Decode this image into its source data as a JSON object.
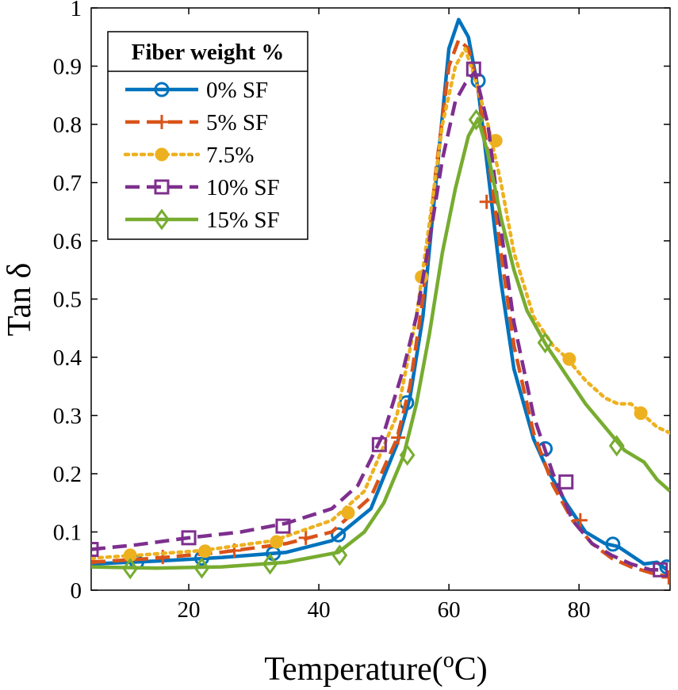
{
  "chart_data": {
    "type": "line",
    "title": "",
    "xlabel": "Temperature(",
    "xlabel_sup": "o",
    "xlabel_end": "C)",
    "ylabel": "Tan δ",
    "xlim": [
      5,
      94
    ],
    "ylim": [
      0,
      1
    ],
    "xticks": [
      20,
      40,
      60,
      80
    ],
    "yticks": [
      0,
      0.1,
      0.2,
      0.3,
      0.4,
      0.5,
      0.6,
      0.7,
      0.8,
      0.9,
      1
    ],
    "legend": {
      "title": "Fiber weight %",
      "location": "top-left"
    },
    "series": [
      {
        "name": "0% SF",
        "color": "#0072BD",
        "style": "solid",
        "marker": "circle",
        "x": [
          5,
          15,
          25,
          35,
          42,
          48,
          52,
          54,
          56,
          58,
          60,
          61.5,
          63,
          64.5,
          66,
          68,
          70,
          73,
          75,
          78,
          81,
          84,
          86,
          88,
          90,
          92,
          93.5
        ],
        "y": [
          0.045,
          0.05,
          0.056,
          0.065,
          0.085,
          0.14,
          0.25,
          0.33,
          0.47,
          0.7,
          0.93,
          0.98,
          0.95,
          0.86,
          0.72,
          0.53,
          0.38,
          0.26,
          0.21,
          0.15,
          0.1,
          0.08,
          0.075,
          0.06,
          0.045,
          0.048,
          0.035
        ],
        "marker_x": [
          12,
          22,
          33,
          43,
          53.5,
          64.5,
          74.8,
          85.2,
          93.5
        ],
        "marker_y": [
          0.048,
          0.055,
          0.063,
          0.095,
          0.322,
          0.875,
          0.243,
          0.079,
          0.04
        ]
      },
      {
        "name": "5% SF",
        "color": "#D95319",
        "style": "dashed",
        "marker": "plus",
        "x": [
          5,
          15,
          25,
          35,
          42,
          48,
          52,
          54,
          56,
          58,
          60,
          61.5,
          63,
          64.5,
          66,
          68,
          70,
          73,
          76,
          79,
          82,
          85,
          88,
          91,
          94
        ],
        "y": [
          0.048,
          0.055,
          0.065,
          0.08,
          0.1,
          0.16,
          0.26,
          0.35,
          0.5,
          0.72,
          0.9,
          0.945,
          0.93,
          0.86,
          0.75,
          0.58,
          0.42,
          0.27,
          0.18,
          0.12,
          0.08,
          0.055,
          0.04,
          0.03,
          0.022
        ],
        "marker_x": [
          5,
          16,
          27,
          38,
          52.2,
          65.8,
          80.2,
          93.8
        ],
        "marker_y": [
          0.05,
          0.057,
          0.068,
          0.09,
          0.262,
          0.667,
          0.12,
          0.022
        ]
      },
      {
        "name": "7.5%",
        "color": "#EDB120",
        "style": "dotted",
        "marker": "dot",
        "x": [
          5,
          12,
          22,
          33,
          42,
          47,
          52,
          55,
          57,
          59,
          61,
          62.5,
          64,
          66,
          68,
          70,
          73,
          76,
          78,
          81,
          84,
          86,
          88,
          90,
          92,
          94
        ],
        "y": [
          0.055,
          0.06,
          0.068,
          0.085,
          0.12,
          0.17,
          0.3,
          0.47,
          0.63,
          0.8,
          0.9,
          0.93,
          0.88,
          0.8,
          0.7,
          0.58,
          0.47,
          0.42,
          0.4,
          0.36,
          0.33,
          0.32,
          0.32,
          0.3,
          0.28,
          0.27
        ],
        "marker_x": [
          11,
          22.5,
          33.5,
          44.5,
          55.8,
          67.2,
          78.5,
          89.5
        ],
        "marker_y": [
          0.06,
          0.067,
          0.083,
          0.133,
          0.538,
          0.772,
          0.397,
          0.304
        ]
      },
      {
        "name": "10% SF",
        "color": "#7E2F8E",
        "style": "dashed",
        "marker": "square",
        "x": [
          5,
          12,
          20,
          28,
          35,
          42,
          46,
          50,
          53,
          55,
          57,
          59,
          61,
          62.5,
          64,
          66,
          68,
          70,
          73,
          76,
          79,
          82,
          85,
          88,
          91,
          93
        ],
        "y": [
          0.07,
          0.078,
          0.09,
          0.1,
          0.115,
          0.14,
          0.18,
          0.27,
          0.38,
          0.47,
          0.6,
          0.74,
          0.84,
          0.87,
          0.89,
          0.8,
          0.62,
          0.46,
          0.3,
          0.2,
          0.12,
          0.08,
          0.06,
          0.045,
          0.035,
          0.035
        ],
        "marker_x": [
          5,
          20,
          34.5,
          49.3,
          63.8,
          78,
          92.5
        ],
        "marker_y": [
          0.07,
          0.09,
          0.11,
          0.25,
          0.895,
          0.186,
          0.035
        ]
      },
      {
        "name": "15% SF",
        "color": "#77AC30",
        "style": "solid",
        "marker": "diamond",
        "x": [
          5,
          15,
          25,
          35,
          43,
          47,
          50,
          53,
          55,
          57,
          59,
          61,
          63,
          64.5,
          66,
          68,
          70,
          72,
          75,
          78,
          81,
          84,
          87,
          90,
          92,
          94
        ],
        "y": [
          0.04,
          0.038,
          0.04,
          0.048,
          0.065,
          0.1,
          0.15,
          0.23,
          0.32,
          0.44,
          0.58,
          0.69,
          0.78,
          0.81,
          0.75,
          0.64,
          0.55,
          0.48,
          0.42,
          0.37,
          0.32,
          0.28,
          0.24,
          0.22,
          0.19,
          0.17
        ],
        "marker_x": [
          11,
          22,
          32.5,
          43.2,
          53.6,
          64.2,
          74.8,
          85.8
        ],
        "marker_y": [
          0.037,
          0.038,
          0.045,
          0.06,
          0.232,
          0.808,
          0.425,
          0.248
        ]
      }
    ]
  }
}
